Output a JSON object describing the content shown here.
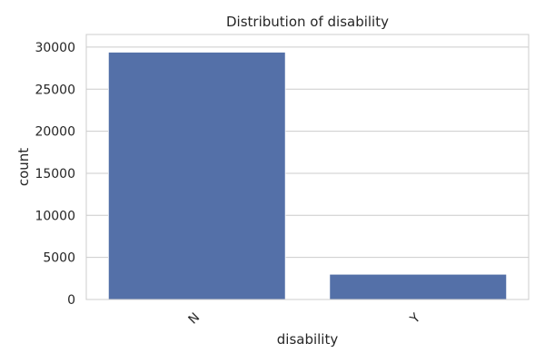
{
  "chart_data": {
    "type": "bar",
    "title": "Distribution of disability",
    "xlabel": "disability",
    "ylabel": "count",
    "categories": [
      "N",
      "Y"
    ],
    "values": [
      29400,
      3000
    ],
    "ylim": [
      0,
      31500
    ],
    "yticks": [
      0,
      5000,
      10000,
      15000,
      20000,
      25000,
      30000
    ],
    "grid": "horizontal",
    "bar_color": "#5470a8",
    "grid_color": "#cccccc",
    "spine_color": "#cccccc",
    "text_color": "#262626"
  }
}
